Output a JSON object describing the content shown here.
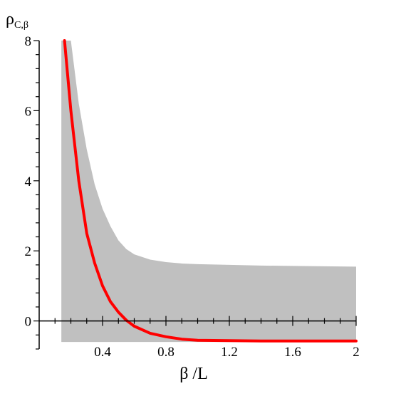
{
  "chart_data": {
    "type": "area",
    "xlabel": "β /L",
    "ylabel": "ρ",
    "ylabel_subscript": "C,β",
    "xlim": [
      0.0,
      2.0
    ],
    "ylim": [
      -0.8,
      8.0
    ],
    "x_ticks": [
      0.4,
      0.8,
      1.2,
      1.6,
      2.0
    ],
    "x_tick_labels": [
      "0.4",
      "0.8",
      "1.2",
      "1.6",
      "2"
    ],
    "y_ticks": [
      0,
      2,
      4,
      6,
      8
    ],
    "y_tick_labels": [
      "0",
      "2",
      "4",
      "6",
      "8"
    ],
    "grid": false,
    "band": {
      "color": "#c0c0c0",
      "x": [
        0.14,
        0.2,
        0.25,
        0.3,
        0.35,
        0.4,
        0.45,
        0.5,
        0.55,
        0.6,
        0.7,
        0.8,
        0.9,
        1.0,
        1.2,
        1.4,
        1.6,
        1.8,
        2.0
      ],
      "upper": [
        8.0,
        8.0,
        6.2,
        4.9,
        3.9,
        3.2,
        2.7,
        2.3,
        2.05,
        1.9,
        1.75,
        1.68,
        1.64,
        1.62,
        1.6,
        1.58,
        1.57,
        1.56,
        1.55
      ],
      "lower": [
        -0.6,
        -0.6,
        -0.6,
        -0.6,
        -0.6,
        -0.6,
        -0.6,
        -0.6,
        -0.6,
        -0.6,
        -0.6,
        -0.6,
        -0.6,
        -0.6,
        -0.6,
        -0.6,
        -0.6,
        -0.6,
        -0.6
      ]
    },
    "series": [
      {
        "color": "#ff0000",
        "x": [
          0.16,
          0.2,
          0.25,
          0.3,
          0.35,
          0.4,
          0.45,
          0.5,
          0.55,
          0.6,
          0.7,
          0.8,
          0.9,
          1.0,
          1.2,
          1.4,
          1.6,
          1.8,
          2.0
        ],
        "values": [
          8.0,
          6.0,
          4.0,
          2.5,
          1.65,
          1.0,
          0.55,
          0.25,
          0.02,
          -0.15,
          -0.35,
          -0.45,
          -0.52,
          -0.55,
          -0.56,
          -0.57,
          -0.57,
          -0.57,
          -0.57
        ]
      }
    ]
  }
}
